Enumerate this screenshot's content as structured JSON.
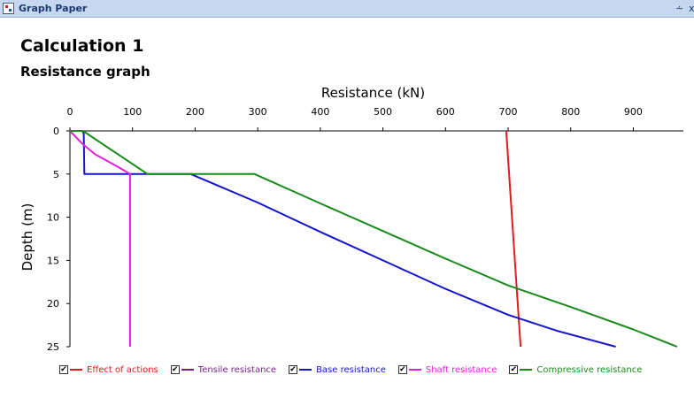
{
  "window": {
    "title": "Graph Paper",
    "pin_glyph": "⩪",
    "close_glyph": "x"
  },
  "page": {
    "title": "Calculation 1",
    "subtitle": "Resistance graph"
  },
  "chart_data": {
    "type": "line",
    "xlabel": "Resistance (kN)",
    "ylabel": "Depth (m)",
    "x_axis_position": "top",
    "y_axis_inverted": true,
    "xlim": [
      0,
      980
    ],
    "ylim": [
      0,
      25
    ],
    "x_ticks": [
      0,
      100,
      200,
      300,
      400,
      500,
      600,
      700,
      800,
      900
    ],
    "y_ticks": [
      0,
      5,
      10,
      15,
      20,
      25
    ],
    "grid": false,
    "legend_position": "bottom",
    "series": [
      {
        "name": "Effect of actions",
        "color": "#e01c1c",
        "x": [
          697,
          720
        ],
        "y": [
          0,
          25
        ]
      },
      {
        "name": "Tensile resistance",
        "color": "#7a1f8f",
        "x": [],
        "y": []
      },
      {
        "name": "Base resistance",
        "color": "#1414c8",
        "x": [
          0,
          20,
          22,
          23,
          26,
          193,
          300,
          400,
          500,
          600,
          700,
          780,
          872
        ],
        "y": [
          0,
          0,
          0.3,
          5,
          5,
          5,
          8.3,
          11.7,
          15,
          18.3,
          21.3,
          23.2,
          25
        ]
      },
      {
        "name": "Shaft resistance",
        "color": "#e020e0",
        "x": [
          0,
          20,
          40,
          65,
          80,
          96,
          96
        ],
        "y": [
          0,
          1.5,
          2.7,
          3.7,
          4.3,
          5,
          25
        ]
      },
      {
        "name": "Compressive resistance",
        "color": "#1a8a1a",
        "x": [
          0,
          21,
          124,
          295,
          400,
          500,
          600,
          700,
          800,
          900,
          970
        ],
        "y": [
          0,
          0,
          5,
          5,
          8.4,
          11.6,
          14.8,
          17.9,
          20.4,
          23,
          25
        ]
      }
    ]
  },
  "legend": {
    "checked_glyph": "✔"
  }
}
